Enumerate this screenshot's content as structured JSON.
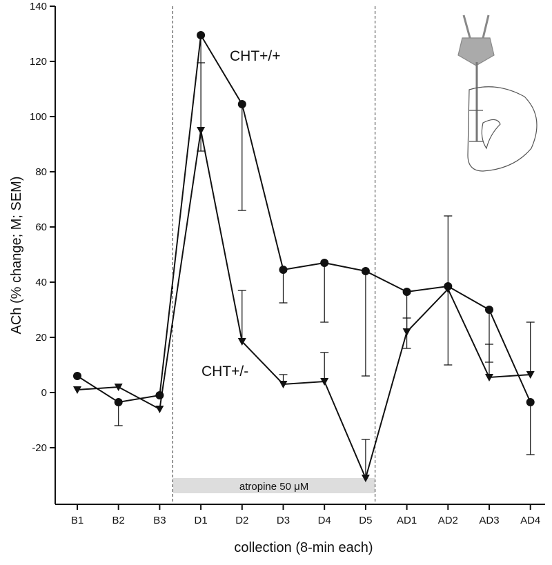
{
  "chart_data": {
    "type": "line",
    "ylabel": "ACh (% change; M; SEM)",
    "xlabel": "collection (8-min each)",
    "categories": [
      "B1",
      "B2",
      "B3",
      "D1",
      "D2",
      "D3",
      "D4",
      "D5",
      "AD1",
      "AD2",
      "AD3",
      "AD4"
    ],
    "ylim": [
      -40.5,
      140
    ],
    "yticks": [
      -20,
      0,
      20,
      40,
      60,
      80,
      100,
      120,
      140
    ],
    "annotation": "atropine 50 μM",
    "series": [
      {
        "name": "CHT+/+",
        "color": "#111111",
        "marker": "circle",
        "error_direction": "down",
        "values": [
          6,
          -3.5,
          -1,
          129.5,
          104.5,
          44.5,
          47,
          44,
          36.5,
          38.5,
          30,
          -3.5
        ],
        "errors": [
          null,
          8.5,
          null,
          42,
          38.5,
          12,
          21.5,
          38,
          20.5,
          28.5,
          19,
          19
        ]
      },
      {
        "name": "CHT+/-",
        "color": "#111111",
        "marker": "triangle",
        "error_direction": "up",
        "values": [
          1,
          2,
          -6,
          95,
          18.5,
          3,
          4,
          -31,
          22,
          37.5,
          5.5,
          6.5
        ],
        "errors": [
          null,
          null,
          null,
          24.5,
          18.5,
          3.5,
          10.5,
          14,
          5,
          26.5,
          12,
          19
        ]
      }
    ]
  }
}
